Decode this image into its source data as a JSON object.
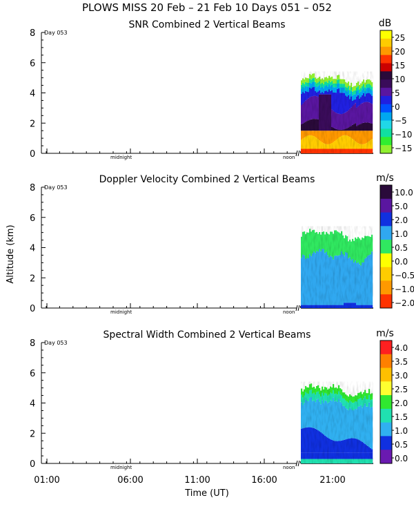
{
  "header": {
    "title": "PLOWS MISS  20 Feb – 21 Feb 10 Days 051 – 052"
  },
  "shared": {
    "ylabel": "Altitude (km)",
    "xlabel": "Time (UT)",
    "day_label": "Day 053",
    "x_ticks": [
      "01:00",
      "06:00",
      "11:00",
      "16:00",
      "21:00"
    ],
    "marker_labels": [
      "midnight",
      "noon"
    ],
    "ylim": [
      0,
      8
    ],
    "y_ticks": [
      0,
      2,
      4,
      6,
      8
    ]
  },
  "chart_data": [
    {
      "type": "heatmap",
      "title": "SNR Combined 2 Vertical Beams",
      "xlabel": "",
      "ylabel": "Altitude (km)",
      "ylim": [
        0,
        8
      ],
      "unit": "dB",
      "colorbar": {
        "labels": [
          "25",
          "20",
          "15",
          "10",
          "5",
          "0",
          "−5",
          "−10",
          "−15"
        ],
        "colors": [
          "#ffff00",
          "#ffcc00",
          "#ff9900",
          "#ff3300",
          "#cc0000",
          "#2a0a3a",
          "#3a0c5a",
          "#5a16a0",
          "#2020e0",
          "#0050ff",
          "#00a8f0",
          "#20d8e8",
          "#10e0a0",
          "#30ee30",
          "#90f030"
        ]
      },
      "data_start_time": "19:00",
      "echo_top_km": [
        4.5,
        5.2
      ]
    },
    {
      "type": "heatmap",
      "title": "Doppler Velocity Combined 2 Vertical Beams",
      "xlabel": "",
      "ylabel": "Altitude (km)",
      "ylim": [
        0,
        8
      ],
      "unit": "m/s",
      "colorbar": {
        "labels": [
          "10.0",
          "5.0",
          "2.0",
          "1.0",
          "0.5",
          "0.0",
          "−0.5",
          "−1.0",
          "−2.0"
        ],
        "colors": [
          "#2a0a3a",
          "#5a16a0",
          "#1030e0",
          "#30a8f0",
          "#30e860",
          "#ffff00",
          "#ffcc00",
          "#ff9900",
          "#ff3300"
        ]
      },
      "data_start_time": "19:00",
      "echo_top_km": [
        4.5,
        5.2
      ]
    },
    {
      "type": "heatmap",
      "title": "Spectral Width Combined 2 Vertical Beams",
      "xlabel": "Time (UT)",
      "ylabel": "Altitude (km)",
      "ylim": [
        0,
        8
      ],
      "unit": "m/s",
      "colorbar": {
        "labels": [
          "4.0",
          "3.5",
          "3.0",
          "2.5",
          "2.0",
          "1.5",
          "1.0",
          "0.5",
          "0.0"
        ],
        "colors": [
          "#ff2020",
          "#ff8000",
          "#ffc000",
          "#ffff30",
          "#30e830",
          "#20e0b0",
          "#30b0f0",
          "#1030e0",
          "#6a1ab0"
        ]
      },
      "data_start_time": "19:00",
      "echo_top_km": [
        4.5,
        5.2
      ]
    }
  ]
}
